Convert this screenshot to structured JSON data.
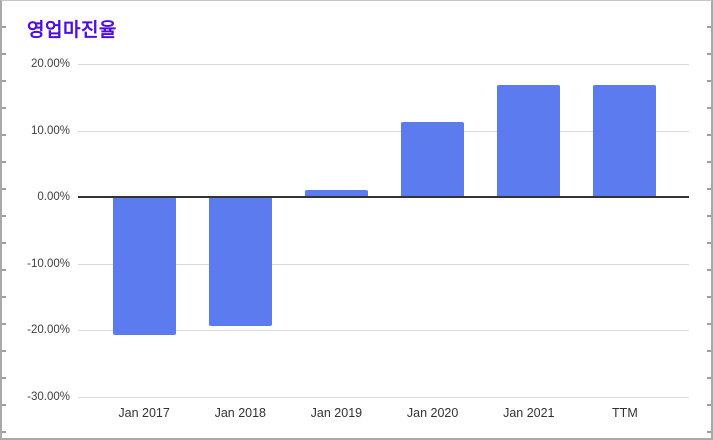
{
  "chart_data": {
    "type": "bar",
    "title": "영업마진율",
    "categories": [
      "Jan 2017",
      "Jan 2018",
      "Jan 2019",
      "Jan 2020",
      "Jan 2021",
      "TTM"
    ],
    "values": [
      -20.7,
      -19.4,
      1.1,
      11.3,
      16.9,
      16.9
    ],
    "unit": "%",
    "xlabel": "",
    "ylabel": "",
    "ylim": [
      -30,
      20
    ],
    "y_tick_values": [
      20,
      10,
      0,
      -10,
      -20,
      -30
    ],
    "y_tick_labels": [
      "20.00%",
      "10.00%",
      "0.00%",
      "-10.00%",
      "-20.00%",
      "-30.00%"
    ],
    "grid": true,
    "legend_position": "none",
    "colors": {
      "bar": "#5b7bef",
      "title": "#4e0ce8",
      "gridline": "#d9d9d9",
      "zero_line": "#333333",
      "axis_text": "#404040",
      "frame_border": "#a9a9a9",
      "background": "#ffffff"
    }
  }
}
